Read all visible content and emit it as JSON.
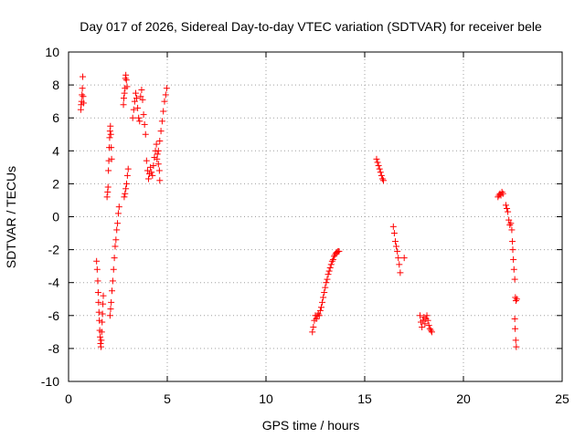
{
  "chart_data": {
    "type": "scatter",
    "title": "Day 017 of 2026, Sidereal Day-to-day VTEC variation (SDTVAR) for receiver bele",
    "xlabel": "GPS time / hours",
    "ylabel": "SDTVAR / TECUs",
    "xlim": [
      0,
      25
    ],
    "ylim": [
      -10,
      10
    ],
    "x_ticks": [
      0,
      5,
      10,
      15,
      20,
      25
    ],
    "x_tick_labels": [
      "0",
      "5",
      "10",
      "15",
      "20",
      "25"
    ],
    "y_ticks": [
      -10,
      -8,
      -6,
      -4,
      -2,
      0,
      2,
      4,
      6,
      8,
      10
    ],
    "y_tick_labels": [
      "-10",
      "-8",
      "-6",
      "-4",
      "-2",
      "0",
      "2",
      "4",
      "6",
      "8",
      "10"
    ],
    "grid": true,
    "marker": "+",
    "marker_color": "#ff0000",
    "series": [
      {
        "name": "SDTVAR",
        "points": [
          [
            0.62,
            6.5
          ],
          [
            0.64,
            6.8
          ],
          [
            0.66,
            7.0
          ],
          [
            0.68,
            7.4
          ],
          [
            0.7,
            7.8
          ],
          [
            0.72,
            8.5
          ],
          [
            0.74,
            7.3
          ],
          [
            0.76,
            6.9
          ],
          [
            1.42,
            -2.7
          ],
          [
            1.45,
            -3.2
          ],
          [
            1.48,
            -3.9
          ],
          [
            1.5,
            -4.6
          ],
          [
            1.52,
            -5.2
          ],
          [
            1.54,
            -5.8
          ],
          [
            1.56,
            -6.3
          ],
          [
            1.58,
            -6.9
          ],
          [
            1.6,
            -7.3
          ],
          [
            1.62,
            -7.7
          ],
          [
            1.64,
            -7.9
          ],
          [
            1.66,
            -7.5
          ],
          [
            1.68,
            -7.0
          ],
          [
            1.7,
            -6.4
          ],
          [
            1.72,
            -5.9
          ],
          [
            1.74,
            -5.3
          ],
          [
            1.76,
            -4.8
          ],
          [
            1.95,
            1.2
          ],
          [
            1.98,
            1.5
          ],
          [
            2.0,
            1.8
          ],
          [
            2.02,
            2.8
          ],
          [
            2.04,
            3.4
          ],
          [
            2.06,
            4.2
          ],
          [
            2.08,
            4.8
          ],
          [
            2.1,
            5.2
          ],
          [
            2.12,
            5.5
          ],
          [
            2.14,
            5.0
          ],
          [
            2.16,
            4.2
          ],
          [
            2.18,
            3.5
          ],
          [
            2.1,
            -6.0
          ],
          [
            2.13,
            -5.6
          ],
          [
            2.16,
            -5.2
          ],
          [
            2.2,
            -4.5
          ],
          [
            2.24,
            -3.9
          ],
          [
            2.28,
            -3.2
          ],
          [
            2.32,
            -2.5
          ],
          [
            2.36,
            -1.8
          ],
          [
            2.4,
            -1.4
          ],
          [
            2.44,
            -0.8
          ],
          [
            2.48,
            -0.4
          ],
          [
            2.52,
            0.2
          ],
          [
            2.56,
            0.6
          ],
          [
            2.78,
            6.8
          ],
          [
            2.8,
            7.2
          ],
          [
            2.83,
            7.5
          ],
          [
            2.86,
            7.8
          ],
          [
            2.88,
            8.4
          ],
          [
            2.9,
            8.6
          ],
          [
            2.93,
            8.3
          ],
          [
            2.96,
            7.9
          ],
          [
            2.82,
            1.2
          ],
          [
            2.86,
            1.4
          ],
          [
            2.9,
            1.7
          ],
          [
            2.94,
            2.0
          ],
          [
            2.98,
            2.5
          ],
          [
            3.02,
            2.9
          ],
          [
            3.25,
            6.0
          ],
          [
            3.3,
            6.5
          ],
          [
            3.35,
            7.0
          ],
          [
            3.4,
            7.5
          ],
          [
            3.45,
            7.2
          ],
          [
            3.5,
            6.6
          ],
          [
            3.55,
            6.0
          ],
          [
            3.6,
            5.8
          ],
          [
            3.65,
            7.3
          ],
          [
            3.7,
            7.7
          ],
          [
            3.75,
            7.1
          ],
          [
            3.8,
            6.2
          ],
          [
            3.85,
            5.6
          ],
          [
            3.9,
            5.0
          ],
          [
            3.95,
            3.4
          ],
          [
            4.0,
            2.8
          ],
          [
            4.05,
            2.3
          ],
          [
            4.1,
            2.6
          ],
          [
            4.15,
            3.0
          ],
          [
            4.2,
            2.7
          ],
          [
            4.25,
            2.5
          ],
          [
            4.3,
            3.1
          ],
          [
            4.35,
            3.6
          ],
          [
            4.4,
            4.0
          ],
          [
            4.45,
            4.4
          ],
          [
            4.5,
            3.8
          ],
          [
            4.55,
            3.2
          ],
          [
            4.6,
            2.8
          ],
          [
            4.62,
            2.2
          ],
          [
            4.48,
            3.5
          ],
          [
            4.55,
            4.0
          ],
          [
            4.62,
            4.6
          ],
          [
            4.68,
            5.2
          ],
          [
            4.74,
            5.8
          ],
          [
            4.8,
            6.4
          ],
          [
            4.86,
            7.0
          ],
          [
            4.92,
            7.4
          ],
          [
            4.97,
            7.8
          ],
          [
            12.35,
            -7.0
          ],
          [
            12.4,
            -6.7
          ],
          [
            12.45,
            -6.3
          ],
          [
            12.5,
            -6.0
          ],
          [
            12.55,
            -6.2
          ],
          [
            12.6,
            -6.0
          ],
          [
            12.65,
            -5.9
          ],
          [
            12.7,
            -6.0
          ],
          [
            12.75,
            -5.7
          ],
          [
            12.8,
            -5.5
          ],
          [
            12.85,
            -5.2
          ],
          [
            12.9,
            -4.9
          ],
          [
            12.95,
            -4.6
          ],
          [
            13.0,
            -4.3
          ],
          [
            13.05,
            -4.0
          ],
          [
            13.1,
            -3.8
          ],
          [
            13.15,
            -3.5
          ],
          [
            13.2,
            -3.3
          ],
          [
            13.25,
            -3.1
          ],
          [
            13.3,
            -2.9
          ],
          [
            13.35,
            -2.7
          ],
          [
            13.4,
            -2.6
          ],
          [
            13.45,
            -2.4
          ],
          [
            13.5,
            -2.3
          ],
          [
            13.55,
            -2.2
          ],
          [
            13.6,
            -2.15
          ],
          [
            13.65,
            -2.1
          ],
          [
            13.7,
            -2.1
          ],
          [
            15.6,
            3.5
          ],
          [
            15.65,
            3.3
          ],
          [
            15.7,
            3.1
          ],
          [
            15.75,
            2.9
          ],
          [
            15.8,
            2.7
          ],
          [
            15.85,
            2.5
          ],
          [
            15.9,
            2.3
          ],
          [
            15.95,
            2.2
          ],
          [
            16.45,
            -0.6
          ],
          [
            16.5,
            -1.0
          ],
          [
            16.55,
            -1.5
          ],
          [
            16.6,
            -1.8
          ],
          [
            16.65,
            -2.1
          ],
          [
            16.7,
            -2.5
          ],
          [
            16.75,
            -2.9
          ],
          [
            16.8,
            -3.4
          ],
          [
            17.0,
            -2.5
          ],
          [
            17.8,
            -6.0
          ],
          [
            17.85,
            -6.4
          ],
          [
            17.9,
            -6.7
          ],
          [
            17.95,
            -6.3
          ],
          [
            18.0,
            -6.1
          ],
          [
            18.05,
            -6.5
          ],
          [
            18.1,
            -6.2
          ],
          [
            18.15,
            -6.0
          ],
          [
            18.2,
            -6.3
          ],
          [
            18.25,
            -6.6
          ],
          [
            18.3,
            -6.8
          ],
          [
            18.35,
            -6.9
          ],
          [
            18.4,
            -7.0
          ],
          [
            21.75,
            1.2
          ],
          [
            21.8,
            1.3
          ],
          [
            21.85,
            1.4
          ],
          [
            21.9,
            1.3
          ],
          [
            21.95,
            1.5
          ],
          [
            22.0,
            1.4
          ],
          [
            22.15,
            0.7
          ],
          [
            22.2,
            0.5
          ],
          [
            22.25,
            0.3
          ],
          [
            22.3,
            -0.2
          ],
          [
            22.35,
            -0.5
          ],
          [
            22.4,
            -0.4
          ],
          [
            22.45,
            -0.8
          ],
          [
            22.48,
            -1.5
          ],
          [
            22.5,
            -2.0
          ],
          [
            22.53,
            -2.6
          ],
          [
            22.56,
            -3.2
          ],
          [
            22.6,
            -3.8
          ],
          [
            22.63,
            -4.9
          ],
          [
            22.66,
            -5.1
          ],
          [
            22.7,
            -5.0
          ],
          [
            22.6,
            -6.2
          ],
          [
            22.62,
            -6.8
          ],
          [
            22.65,
            -7.5
          ],
          [
            22.68,
            -7.9
          ]
        ]
      }
    ]
  }
}
